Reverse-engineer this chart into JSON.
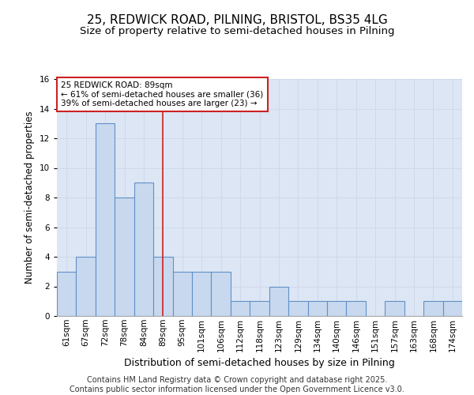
{
  "title1": "25, REDWICK ROAD, PILNING, BRISTOL, BS35 4LG",
  "title2": "Size of property relative to semi-detached houses in Pilning",
  "xlabel": "Distribution of semi-detached houses by size in Pilning",
  "ylabel": "Number of semi-detached properties",
  "categories": [
    "61sqm",
    "67sqm",
    "72sqm",
    "78sqm",
    "84sqm",
    "89sqm",
    "95sqm",
    "101sqm",
    "106sqm",
    "112sqm",
    "118sqm",
    "123sqm",
    "129sqm",
    "134sqm",
    "140sqm",
    "146sqm",
    "151sqm",
    "157sqm",
    "163sqm",
    "168sqm",
    "174sqm"
  ],
  "values": [
    3,
    4,
    13,
    8,
    9,
    4,
    3,
    3,
    3,
    1,
    1,
    2,
    1,
    1,
    1,
    1,
    0,
    1,
    0,
    1,
    1
  ],
  "highlight_index": 5,
  "bar_color": "#c8d8ee",
  "bar_edge_color": "#6090c8",
  "highlight_line_color": "#cc2222",
  "annotation_line1": "25 REDWICK ROAD: 89sqm",
  "annotation_line2": "← 61% of semi-detached houses are smaller (36)",
  "annotation_line3": "39% of semi-detached houses are larger (23) →",
  "annotation_box_facecolor": "#ffffff",
  "annotation_box_edgecolor": "#cc2222",
  "ylim": [
    0,
    16
  ],
  "yticks": [
    0,
    2,
    4,
    6,
    8,
    10,
    12,
    14,
    16
  ],
  "grid_color": "#d0d8ea",
  "bg_color": "#dde6f4",
  "fig_bg_color": "#ffffff",
  "title1_fontsize": 11,
  "title2_fontsize": 9.5,
  "xlabel_fontsize": 9,
  "ylabel_fontsize": 8.5,
  "tick_fontsize": 7.5,
  "annot_fontsize": 7.5,
  "footer_fontsize": 7,
  "footer_text": "Contains HM Land Registry data © Crown copyright and database right 2025.\nContains public sector information licensed under the Open Government Licence v3.0."
}
